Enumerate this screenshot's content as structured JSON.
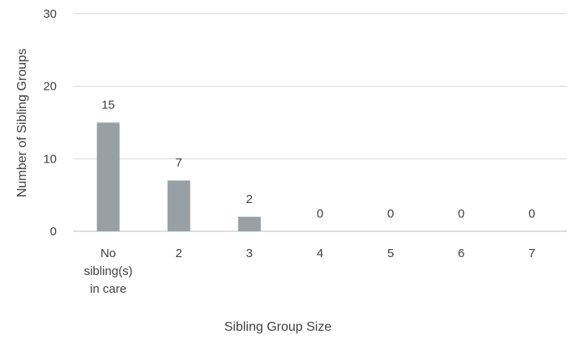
{
  "chart_data": {
    "type": "bar",
    "title": "",
    "xlabel": "Sibling Group Size",
    "ylabel": "Number of Sibling Groups",
    "categories": [
      [
        "No",
        "sibling(s)",
        "in care"
      ],
      [
        "2"
      ],
      [
        "3"
      ],
      [
        "4"
      ],
      [
        "5"
      ],
      [
        "6"
      ],
      [
        "7"
      ]
    ],
    "values": [
      15,
      7,
      2,
      0,
      0,
      0,
      0
    ],
    "ylim": [
      0,
      30
    ],
    "yticks": [
      0,
      10,
      20,
      30
    ],
    "grid": true,
    "legend": "none",
    "colors": {
      "bar": "#97a0a5",
      "grid": "#d9d9d9",
      "text": "#404040"
    }
  }
}
